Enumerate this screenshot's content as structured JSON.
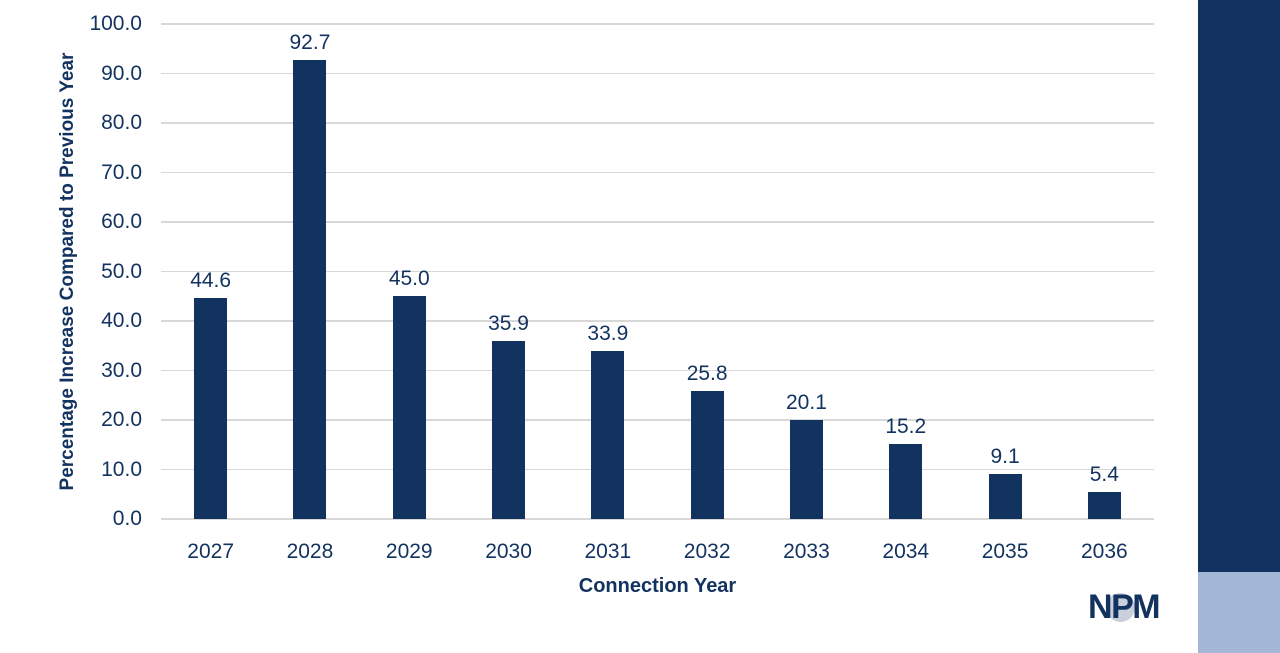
{
  "chart_data": {
    "type": "bar",
    "categories": [
      "2027",
      "2028",
      "2029",
      "2030",
      "2031",
      "2032",
      "2033",
      "2034",
      "2035",
      "2036"
    ],
    "values": [
      44.6,
      92.7,
      45.0,
      35.9,
      33.9,
      25.8,
      20.1,
      15.2,
      9.1,
      5.4
    ],
    "title": "",
    "xlabel": "Connection Year",
    "ylabel": "Percentage Increase Compared to Previous Year",
    "ylim": [
      0,
      100
    ],
    "ytick_step": 10,
    "ytick_decimals": 1,
    "value_label_decimals": 1,
    "grid": "horizontal",
    "legend": "none",
    "bar_color": "#12325F"
  },
  "logo": {
    "n": "N",
    "p": "P",
    "m": "M"
  },
  "colors": {
    "navy": "#12325F",
    "light_blue": "#A4B6D6",
    "gridline": "#D8D8D8",
    "logo_circle": "#C9D0DC",
    "background": "#FFFFFF"
  }
}
